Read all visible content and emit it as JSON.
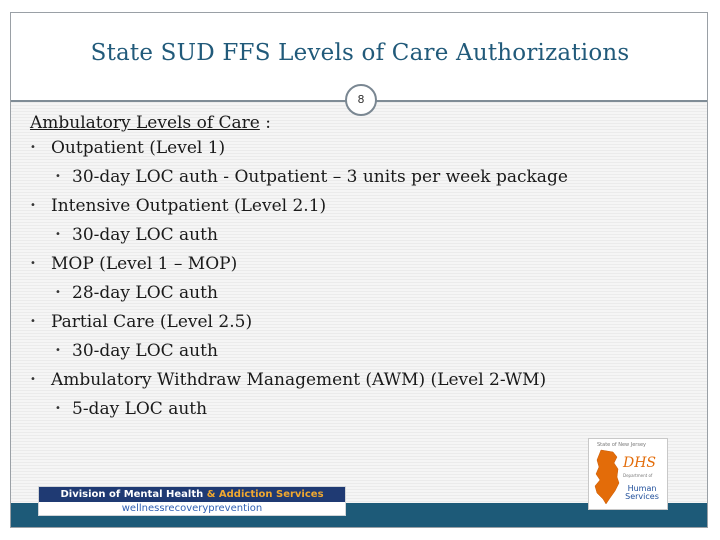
{
  "slide": {
    "title": "State SUD FFS Levels of Care Authorizations",
    "page_number": "8"
  },
  "content": {
    "heading": "Ambulatory Levels of Care",
    "heading_suffix": " :",
    "items": [
      {
        "label": "Outpatient (Level 1)",
        "sub": "30-day LOC auth  - Outpatient – 3 units per week package"
      },
      {
        "label": "Intensive Outpatient (Level 2.1)",
        "sub": "30-day LOC auth"
      },
      {
        "label": "MOP (Level 1 – MOP)",
        "sub": "28-day LOC auth"
      },
      {
        "label": "Partial Care (Level 2.5)",
        "sub": "30-day LOC auth"
      },
      {
        "label": "Ambulatory Withdraw Management (AWM) (Level 2-WM)",
        "sub": "5-day LOC auth"
      }
    ],
    "bullet_char": "•"
  },
  "footer": {
    "dmhas_part1": "Division of Mental Health",
    "dmhas_amp": " & ",
    "dmhas_part2": "Addiction Services",
    "dmhas_tagline": "wellnessrecoveryprevention",
    "dhs_state": "State of New Jersey",
    "dhs_mark": "DHS",
    "dhs_dept": "Department of",
    "dhs_line1": "Human",
    "dhs_line2": "Services"
  },
  "colors": {
    "title": "#215a7a",
    "bottom_bar": "#1d5a78",
    "dmhas_navy": "#1f3a73",
    "dmhas_orange": "#f0a830",
    "dhs_orange": "#e36c09"
  }
}
